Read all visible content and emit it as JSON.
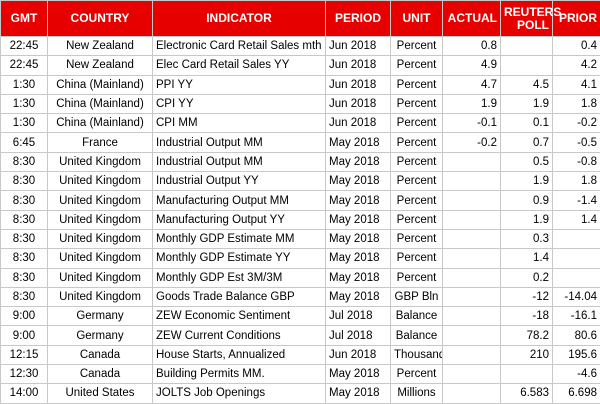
{
  "table": {
    "header": [
      "GMT",
      "COUNTRY",
      "INDICATOR",
      "PERIOD",
      "UNIT",
      "ACTUAL",
      "REUTERS POLL",
      "PRIOR"
    ],
    "rows": [
      [
        "22:45",
        "New Zealand",
        "Electronic Card Retail Sales mth",
        "Jun 2018",
        "Percent",
        "0.8",
        null,
        "0.4"
      ],
      [
        "22:45",
        "New Zealand",
        "Elec Card Retail Sales YY",
        "Jun 2018",
        "Percent",
        "4.9",
        null,
        "4.2"
      ],
      [
        "1:30",
        "China (Mainland)",
        "PPI YY",
        "Jun 2018",
        "Percent",
        "4.7",
        "4.5",
        "4.1"
      ],
      [
        "1:30",
        "China (Mainland)",
        "CPI YY",
        "Jun 2018",
        "Percent",
        "1.9",
        "1.9",
        "1.8"
      ],
      [
        "1:30",
        "China (Mainland)",
        "CPI MM",
        "Jun 2018",
        "Percent",
        "-0.1",
        "0.1",
        "-0.2"
      ],
      [
        "6:45",
        "France",
        "Industrial Output MM",
        "May 2018",
        "Percent",
        "-0.2",
        "0.7",
        "-0.5"
      ],
      [
        "8:30",
        "United Kingdom",
        "Industrial Output MM",
        "May 2018",
        "Percent",
        null,
        "0.5",
        "-0.8"
      ],
      [
        "8:30",
        "United Kingdom",
        "Industrial Output YY",
        "May 2018",
        "Percent",
        null,
        "1.9",
        "1.8"
      ],
      [
        "8:30",
        "United Kingdom",
        "Manufacturing Output MM",
        "May 2018",
        "Percent",
        null,
        "0.9",
        "-1.4"
      ],
      [
        "8:30",
        "United Kingdom",
        "Manufacturing Output YY",
        "May 2018",
        "Percent",
        null,
        "1.9",
        "1.4"
      ],
      [
        "8:30",
        "United Kingdom",
        "Monthly GDP Estimate MM",
        "May 2018",
        "Percent",
        null,
        "0.3",
        null
      ],
      [
        "8:30",
        "United Kingdom",
        "Monthly GDP Estimate YY",
        "May 2018",
        "Percent",
        null,
        "1.4",
        null
      ],
      [
        "8:30",
        "United Kingdom",
        "Monthly GDP Est 3M/3M",
        "May 2018",
        "Percent",
        null,
        "0.2",
        null
      ],
      [
        "8:30",
        "United Kingdom",
        "Goods Trade Balance GBP",
        "May 2018",
        "GBP Bln",
        null,
        "-12",
        "-14.04"
      ],
      [
        "9:00",
        "Germany",
        "ZEW Economic Sentiment",
        "Jul 2018",
        "Balance",
        null,
        "-18",
        "-16.1"
      ],
      [
        "9:00",
        "Germany",
        "ZEW Current Conditions",
        "Jul 2018",
        "Balance",
        null,
        "78.2",
        "80.6"
      ],
      [
        "12:15",
        "Canada",
        "House Starts, Annualized",
        "Jun 2018",
        "Thousands",
        null,
        "210",
        "195.6"
      ],
      [
        "12:30",
        "Canada",
        "Building Permits MM.",
        "May 2018",
        "Percent",
        null,
        null,
        "-4.6"
      ],
      [
        "14:00",
        "United States",
        "JOLTS Job Openings",
        "May 2018",
        "Millions",
        null,
        "6.583",
        "6.698"
      ]
    ]
  }
}
